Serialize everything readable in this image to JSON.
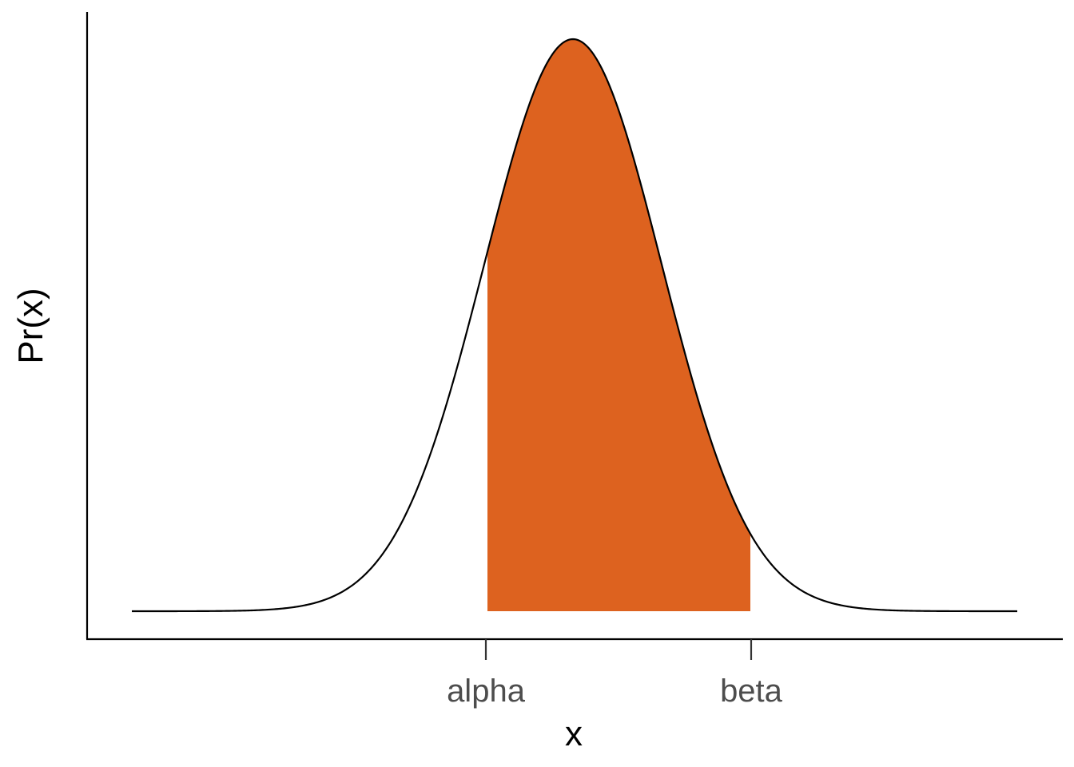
{
  "chart_data": {
    "type": "area",
    "curve": "normal-density",
    "xlabel": "x",
    "ylabel": "Pr(x)",
    "x_tick_labels": [
      "alpha",
      "beta"
    ],
    "shaded_region": {
      "from": "alpha",
      "to": "beta"
    },
    "grid": false,
    "legend": "none",
    "colors": {
      "fill": "#dd621f",
      "curve": "#000000",
      "axis": "#000000",
      "tick_text": "#4d4d4d"
    }
  }
}
